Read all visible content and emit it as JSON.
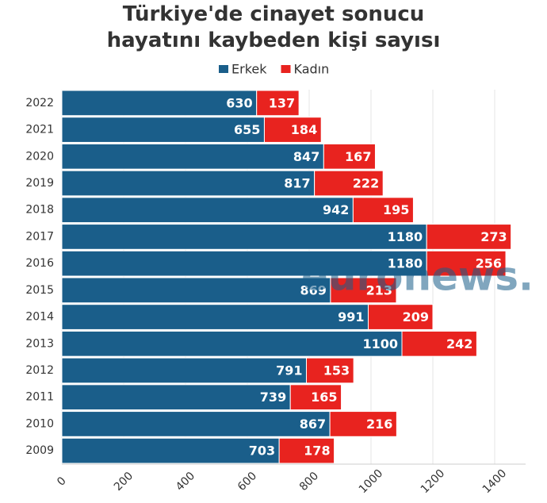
{
  "chart_data": {
    "type": "stacked-barh",
    "title": "Türkiye'de cinayet sonucu hayatını kaybeden kişi sayısı",
    "categories": [
      "2022",
      "2021",
      "2020",
      "2019",
      "2018",
      "2017",
      "2016",
      "2015",
      "2014",
      "2013",
      "2012",
      "2011",
      "2010",
      "2009"
    ],
    "series": [
      {
        "name": "Erkek",
        "color": "#1a5e8a",
        "values": [
          630,
          655,
          847,
          817,
          942,
          1180,
          1180,
          869,
          991,
          1100,
          791,
          739,
          867,
          703
        ]
      },
      {
        "name": "Kadın",
        "color": "#e8231f",
        "values": [
          137,
          184,
          167,
          222,
          195,
          273,
          256,
          213,
          209,
          242,
          153,
          165,
          216,
          178
        ]
      }
    ],
    "xlim": [
      0,
      1500
    ],
    "xticks": [
      0,
      200,
      400,
      600,
      800,
      1000,
      1200,
      1400
    ],
    "grid": true,
    "watermark": "euronews."
  }
}
